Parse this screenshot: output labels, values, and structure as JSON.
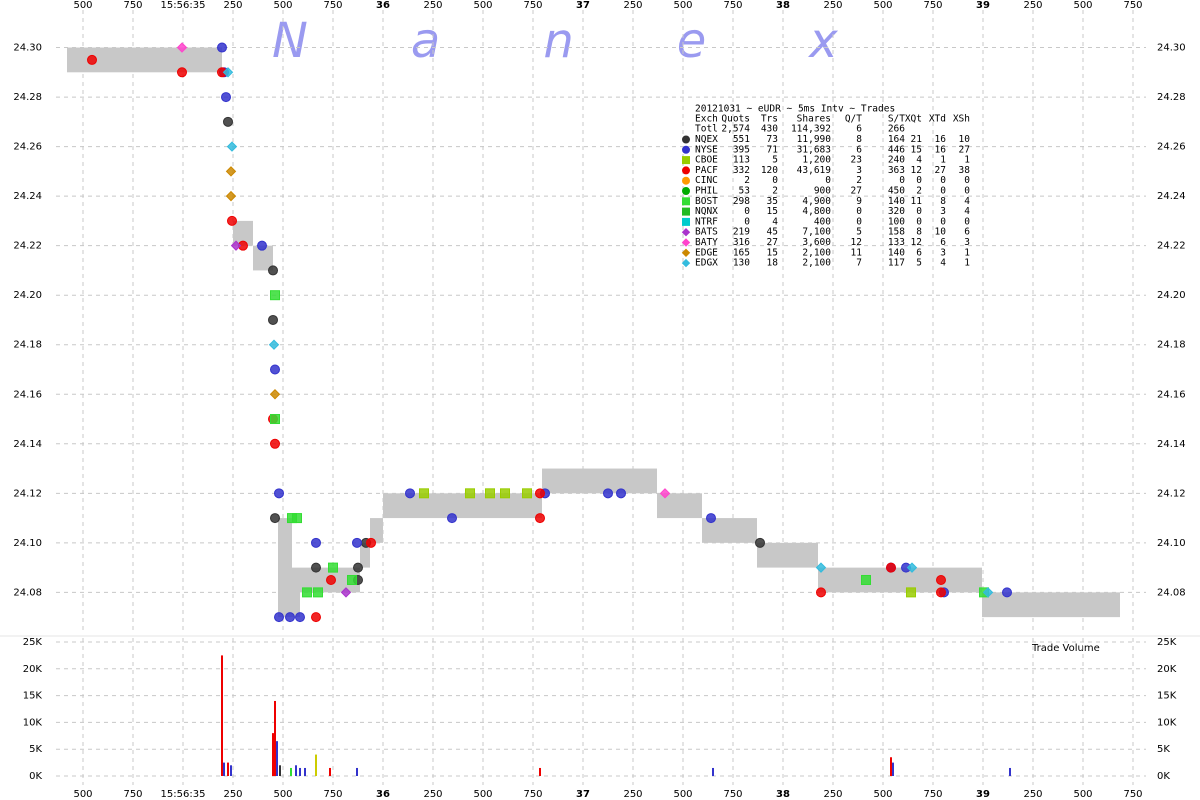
{
  "chart_data": {
    "type": "scatter",
    "watermark": "Nanex",
    "xlim": [
      34.365,
      39.815
    ],
    "xticks": [
      {
        "value": 34.5,
        "label": "500"
      },
      {
        "value": 34.75,
        "label": "750"
      },
      {
        "value": 35,
        "label": "15:56:35"
      },
      {
        "value": 35.25,
        "label": "250"
      },
      {
        "value": 35.5,
        "label": "500"
      },
      {
        "value": 35.75,
        "label": "750"
      },
      36,
      {
        "value": 36.25,
        "label": "250"
      },
      {
        "value": 36.5,
        "label": "500"
      },
      {
        "value": 36.75,
        "label": "750"
      },
      37,
      {
        "value": 37.25,
        "label": "250"
      },
      {
        "value": 37.5,
        "label": "500"
      },
      {
        "value": 37.75,
        "label": "750"
      },
      38,
      {
        "value": 38.25,
        "label": "250"
      },
      {
        "value": 38.5,
        "label": "500"
      },
      {
        "value": 38.75,
        "label": "750"
      },
      39,
      {
        "value": 39.25,
        "label": "250"
      },
      {
        "value": 39.5,
        "label": "500"
      },
      {
        "value": 39.75,
        "label": "750"
      }
    ],
    "ylim": [
      24.064,
      24.32
    ],
    "yticks": [
      {
        "value": 24.08,
        "label": "24.08"
      },
      {
        "value": 24.1,
        "label": "24.10"
      },
      {
        "value": 24.12,
        "label": "24.12"
      },
      {
        "value": 24.14,
        "label": "24.14"
      },
      {
        "value": 24.16,
        "label": "24.16"
      },
      {
        "value": 24.18,
        "label": "24.18"
      },
      {
        "value": 24.2,
        "label": "24.20"
      },
      {
        "value": 24.22,
        "label": "24.22"
      },
      {
        "value": 24.24,
        "label": "24.24"
      },
      {
        "value": 24.26,
        "label": "24.26"
      },
      {
        "value": 24.28,
        "label": "24.28"
      },
      {
        "value": 24.3,
        "label": "24.30"
      }
    ],
    "grid": true,
    "quotes": {
      "color": "#c8c8c8",
      "x0": [
        34.42,
        35.25,
        35.35,
        35.475,
        35.545,
        35.585,
        35.885,
        35.935,
        36.0,
        36.795,
        37.37,
        37.595,
        37.87,
        38.175,
        38.995
      ],
      "x1": [
        35.195,
        35.35,
        35.45,
        35.545,
        35.585,
        35.885,
        35.935,
        36.0,
        36.795,
        37.37,
        37.595,
        37.87,
        38.175,
        38.995,
        39.685
      ],
      "bid": [
        24.29,
        24.22,
        24.21,
        24.07,
        24.07,
        24.08,
        24.09,
        24.1,
        24.11,
        24.12,
        24.11,
        24.1,
        24.09,
        24.08,
        24.07
      ],
      "ask": [
        24.3,
        24.23,
        24.22,
        24.11,
        24.09,
        24.09,
        24.1,
        24.11,
        24.12,
        24.13,
        24.12,
        24.11,
        24.1,
        24.09,
        24.08
      ]
    },
    "series": [
      {
        "name": "NQEX",
        "color": "#333333",
        "marker": "circle",
        "x": [
          35.225,
          35.45,
          35.45,
          35.46,
          35.665,
          35.875,
          35.875,
          35.915,
          37.885
        ],
        "values": [
          24.27,
          24.21,
          24.19,
          24.11,
          24.09,
          24.09,
          24.085,
          24.1,
          24.1
        ]
      },
      {
        "name": "NYSE",
        "color": "#3333cc",
        "marker": "circle",
        "x": [
          35.205,
          35.195,
          35.215,
          35.395,
          35.46,
          35.48,
          35.48,
          35.535,
          35.585,
          35.665,
          35.87,
          36.135,
          36.345,
          36.81,
          37.125,
          37.19,
          37.64,
          38.54,
          38.615,
          38.805,
          39.12
        ],
        "values": [
          24.29,
          24.3,
          24.28,
          24.22,
          24.17,
          24.12,
          24.07,
          24.07,
          24.07,
          24.1,
          24.1,
          24.12,
          24.11,
          24.12,
          24.12,
          24.12,
          24.11,
          24.09,
          24.09,
          24.08,
          24.08
        ]
      },
      {
        "name": "CBOE",
        "color": "#99cc00",
        "marker": "square",
        "x": [
          36.205,
          36.435,
          36.535,
          36.61,
          36.72,
          38.64
        ],
        "values": [
          24.12,
          24.12,
          24.12,
          24.12,
          24.12,
          24.08
        ]
      },
      {
        "name": "PACF",
        "color": "#ee0000",
        "marker": "circle",
        "x": [
          34.545,
          34.995,
          35.195,
          35.245,
          35.3,
          35.45,
          35.46,
          35.665,
          35.74,
          35.94,
          36.785,
          36.785,
          38.19,
          38.54,
          38.79,
          38.79
        ],
        "values": [
          24.295,
          24.29,
          24.29,
          24.23,
          24.22,
          24.15,
          24.14,
          24.07,
          24.085,
          24.1,
          24.12,
          24.11,
          24.08,
          24.09,
          24.085,
          24.08
        ]
      },
      {
        "name": "CINC",
        "color": "#ff9900",
        "marker": "circle",
        "x": [],
        "values": []
      },
      {
        "name": "PHIL",
        "color": "#00aa00",
        "marker": "circle",
        "x": [],
        "values": []
      },
      {
        "name": "BOST",
        "color": "#33dd33",
        "marker": "square",
        "x": [
          35.46,
          35.46,
          35.545,
          35.57,
          35.62,
          35.675,
          35.75,
          35.845,
          38.415,
          39.005
        ],
        "values": [
          24.2,
          24.15,
          24.11,
          24.11,
          24.08,
          24.08,
          24.09,
          24.085,
          24.085,
          24.08
        ]
      },
      {
        "name": "NQNX",
        "color": "#22bb22",
        "marker": "square",
        "x": [],
        "values": []
      },
      {
        "name": "NTRF",
        "color": "#00cccc",
        "marker": "square",
        "x": [],
        "values": []
      },
      {
        "name": "BATS",
        "color": "#aa33cc",
        "marker": "diamond",
        "x": [
          35.265,
          35.815
        ],
        "values": [
          24.22,
          24.08
        ]
      },
      {
        "name": "BATY",
        "color": "#ff44cc",
        "marker": "diamond",
        "x": [
          34.995,
          37.41
        ],
        "values": [
          24.3,
          24.12
        ]
      },
      {
        "name": "EDGE",
        "color": "#cc8800",
        "marker": "diamond",
        "x": [
          35.24,
          35.24,
          35.46
        ],
        "values": [
          24.25,
          24.24,
          24.16
        ]
      },
      {
        "name": "EDGX",
        "color": "#33bbdd",
        "marker": "diamond",
        "x": [
          35.225,
          35.245,
          35.455,
          38.19,
          38.645,
          39.025
        ],
        "values": [
          24.29,
          24.26,
          24.18,
          24.09,
          24.09,
          24.08
        ]
      }
    ],
    "stats": {
      "title": "20121031 ~ eUDR ~ 5ms Intv ~ Trades",
      "columns": [
        "Exch",
        "Quots",
        "Trs",
        "Shares",
        "Q/T",
        "S/T",
        "XQt",
        "XTd",
        "XSh"
      ],
      "total": [
        "Totl",
        "2,574",
        "430",
        "114,392",
        "6",
        "266"
      ],
      "rows": [
        [
          "551",
          "73",
          "11,990",
          "8",
          "164",
          "21",
          "16",
          "10"
        ],
        [
          "395",
          "71",
          "31,683",
          "6",
          "446",
          "15",
          "16",
          "27"
        ],
        [
          "113",
          "5",
          "1,200",
          "23",
          "240",
          "4",
          "1",
          "1"
        ],
        [
          "332",
          "120",
          "43,619",
          "3",
          "363",
          "12",
          "27",
          "38"
        ],
        [
          "2",
          "0",
          "0",
          "2",
          "0",
          "0",
          "0",
          "0"
        ],
        [
          "53",
          "2",
          "900",
          "27",
          "450",
          "2",
          "0",
          "0"
        ],
        [
          "298",
          "35",
          "4,900",
          "9",
          "140",
          "11",
          "8",
          "4"
        ],
        [
          "0",
          "15",
          "4,800",
          "0",
          "320",
          "0",
          "3",
          "4"
        ],
        [
          "0",
          "4",
          "400",
          "0",
          "100",
          "0",
          "0",
          "0"
        ],
        [
          "219",
          "45",
          "7,100",
          "5",
          "158",
          "8",
          "10",
          "6"
        ],
        [
          "316",
          "27",
          "3,600",
          "12",
          "133",
          "12",
          "6",
          "3"
        ],
        [
          "165",
          "15",
          "2,100",
          "11",
          "140",
          "6",
          "3",
          "1"
        ],
        [
          "130",
          "18",
          "2,100",
          "7",
          "117",
          "5",
          "4",
          "1"
        ]
      ]
    },
    "volume": {
      "label": "Trade Volume",
      "ylim": [
        0,
        25000
      ],
      "yticks": [
        {
          "value": 0,
          "label": "0K"
        },
        {
          "value": 5000,
          "label": "5K"
        },
        {
          "value": 10000,
          "label": "10K"
        },
        {
          "value": 15000,
          "label": "15K"
        },
        {
          "value": 20000,
          "label": "20K"
        },
        {
          "value": 25000,
          "label": "25K"
        }
      ],
      "x": [
        35.195,
        35.205,
        35.225,
        35.24,
        35.45,
        35.46,
        35.47,
        35.485,
        35.54,
        35.565,
        35.585,
        35.61,
        35.665,
        35.735,
        35.87,
        36.785,
        37.65,
        38.54,
        38.55,
        39.135
      ],
      "values": [
        22500,
        2500,
        2500,
        2000,
        8000,
        14000,
        6500,
        2000,
        1500,
        2000,
        1500,
        1500,
        4000,
        1500,
        1500,
        1500,
        1500,
        3500,
        2500,
        1500
      ],
      "colors": [
        "#ee0000",
        "#3333cc",
        "#ee0000",
        "#3333cc",
        "#ee0000",
        "#ee0000",
        "#3333cc",
        "#333333",
        "#33dd33",
        "#3333cc",
        "#3333cc",
        "#3333cc",
        "#cccc00",
        "#ee0000",
        "#3333cc",
        "#ee0000",
        "#3333cc",
        "#ee0000",
        "#3333cc",
        "#3333cc"
      ]
    }
  }
}
